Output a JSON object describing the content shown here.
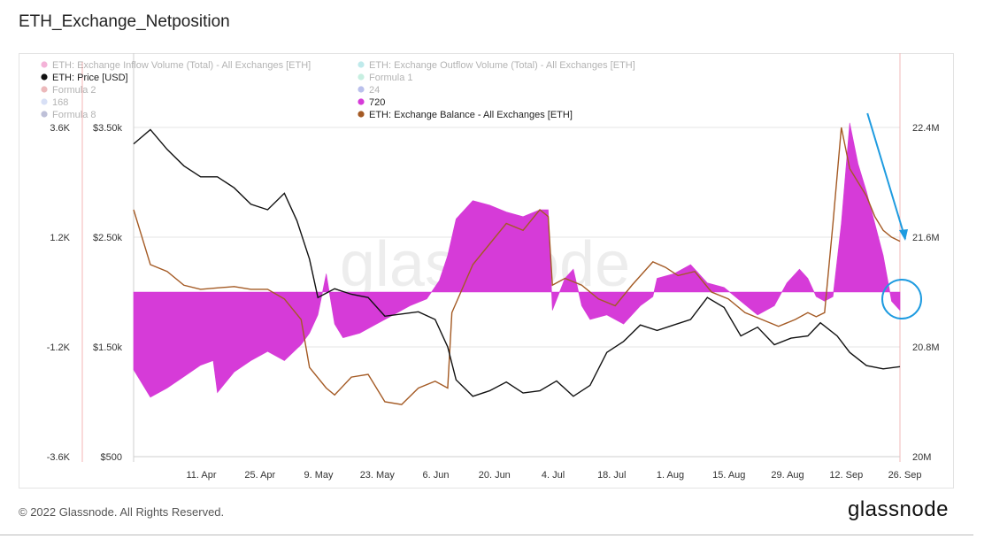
{
  "title": "ETH_Exchange_Netposition",
  "footer": {
    "copyright": "© 2022 Glassnode. All Rights Reserved.",
    "logo": "glassnode"
  },
  "watermark": "glassnode",
  "colors": {
    "netposition": "#d63bd8",
    "price": "#111111",
    "balance": "#a45a24",
    "annotation": "#1e9be0",
    "grid": "#e6e6e6"
  },
  "chart_data": {
    "type": "area",
    "title": "ETH_Exchange_Netposition",
    "legend": [
      {
        "label": "ETH: Exchange Inflow Volume (Total) - All Exchanges [ETH]",
        "color": "#e0268f",
        "faded": true
      },
      {
        "label": "ETH: Exchange Outflow Volume (Total) - All Exchanges [ETH]",
        "color": "#48c4c6",
        "faded": true
      },
      {
        "label": "ETH: Price [USD]",
        "color": "#111111",
        "faded": false
      },
      {
        "label": "Formula 1",
        "color": "#5fd0a8",
        "faded": true
      },
      {
        "label": "Formula 2",
        "color": "#c8363c",
        "faded": true
      },
      {
        "label": "24",
        "color": "#3a4ac8",
        "faded": true
      },
      {
        "label": "168",
        "color": "#8fa7e6",
        "faded": true
      },
      {
        "label": "720",
        "color": "#d63bd8",
        "faded": false
      },
      {
        "label": "Formula 8",
        "color": "#464a8e",
        "faded": true
      },
      {
        "label": "ETH: Exchange Balance - All Exchanges [ETH]",
        "color": "#a45a24",
        "faded": false
      }
    ],
    "x_ticks": [
      "11. Apr",
      "25. Apr",
      "9. May",
      "23. May",
      "6. Jun",
      "20. Jun",
      "4. Jul",
      "18. Jul",
      "1. Aug",
      "15. Aug",
      "29. Aug",
      "12. Sep",
      "26. Sep"
    ],
    "x_range": [
      "2022-03-29",
      "2022-09-28"
    ],
    "y_left_net": {
      "ticks": [
        "3.6K",
        "1.2K",
        "-1.2K",
        "-3.6K"
      ],
      "range": [
        -3600,
        3600
      ]
    },
    "y_left_price": {
      "ticks": [
        "$3.50k",
        "$2.50k",
        "$1.50k",
        "$500"
      ],
      "range": [
        500,
        3500
      ]
    },
    "y_right_balance": {
      "ticks": [
        "22.4M",
        "21.6M",
        "20.8M",
        "20M"
      ],
      "range": [
        20000000,
        22400000
      ]
    },
    "series": [
      {
        "name": "720",
        "type": "area",
        "axis": "net",
        "dates": [
          "2022-03-29",
          "2022-04-02",
          "2022-04-06",
          "2022-04-10",
          "2022-04-14",
          "2022-04-17",
          "2022-04-18",
          "2022-04-22",
          "2022-04-26",
          "2022-04-30",
          "2022-05-04",
          "2022-05-08",
          "2022-05-10",
          "2022-05-12",
          "2022-05-14",
          "2022-05-16",
          "2022-05-18",
          "2022-05-22",
          "2022-05-26",
          "2022-05-30",
          "2022-06-03",
          "2022-06-07",
          "2022-06-10",
          "2022-06-12",
          "2022-06-14",
          "2022-06-18",
          "2022-06-22",
          "2022-06-26",
          "2022-06-30",
          "2022-07-04",
          "2022-07-06",
          "2022-07-07",
          "2022-07-10",
          "2022-07-12",
          "2022-07-14",
          "2022-07-16",
          "2022-07-20",
          "2022-07-24",
          "2022-07-28",
          "2022-07-31",
          "2022-08-01",
          "2022-08-05",
          "2022-08-09",
          "2022-08-13",
          "2022-08-17",
          "2022-08-21",
          "2022-08-25",
          "2022-08-29",
          "2022-09-01",
          "2022-09-04",
          "2022-09-06",
          "2022-09-08",
          "2022-09-10",
          "2022-09-12",
          "2022-09-14",
          "2022-09-16",
          "2022-09-18",
          "2022-09-20",
          "2022-09-22",
          "2022-09-24",
          "2022-09-26",
          "2022-09-28"
        ],
        "values": [
          -1700,
          -2300,
          -2100,
          -1850,
          -1600,
          -1500,
          -2200,
          -1750,
          -1500,
          -1300,
          -1500,
          -1150,
          -900,
          -500,
          400,
          -700,
          -1000,
          -900,
          -700,
          -500,
          -300,
          -150,
          250,
          800,
          1600,
          2000,
          1900,
          1750,
          1650,
          1800,
          1800,
          -400,
          300,
          500,
          -300,
          -600,
          -500,
          -700,
          -300,
          -100,
          300,
          400,
          600,
          200,
          100,
          -200,
          -500,
          -300,
          200,
          500,
          300,
          -100,
          -200,
          -100,
          1500,
          3700,
          2800,
          2200,
          1500,
          800,
          -200,
          -400
        ]
      },
      {
        "name": "ETH: Price [USD]",
        "type": "line",
        "axis": "price",
        "dates": [
          "2022-03-29",
          "2022-04-02",
          "2022-04-06",
          "2022-04-10",
          "2022-04-14",
          "2022-04-18",
          "2022-04-22",
          "2022-04-26",
          "2022-04-30",
          "2022-05-04",
          "2022-05-07",
          "2022-05-10",
          "2022-05-12",
          "2022-05-16",
          "2022-05-20",
          "2022-05-24",
          "2022-05-28",
          "2022-06-01",
          "2022-06-05",
          "2022-06-09",
          "2022-06-12",
          "2022-06-14",
          "2022-06-18",
          "2022-06-22",
          "2022-06-26",
          "2022-06-30",
          "2022-07-04",
          "2022-07-08",
          "2022-07-12",
          "2022-07-16",
          "2022-07-20",
          "2022-07-24",
          "2022-07-28",
          "2022-08-01",
          "2022-08-05",
          "2022-08-09",
          "2022-08-13",
          "2022-08-17",
          "2022-08-21",
          "2022-08-25",
          "2022-08-29",
          "2022-09-02",
          "2022-09-06",
          "2022-09-09",
          "2022-09-13",
          "2022-09-16",
          "2022-09-20",
          "2022-09-24",
          "2022-09-28"
        ],
        "values": [
          3350,
          3480,
          3300,
          3150,
          3050,
          3050,
          2950,
          2800,
          2750,
          2900,
          2650,
          2300,
          1950,
          2030,
          1980,
          1950,
          1780,
          1800,
          1820,
          1750,
          1500,
          1200,
          1050,
          1100,
          1180,
          1080,
          1100,
          1190,
          1050,
          1150,
          1450,
          1550,
          1700,
          1650,
          1700,
          1750,
          1950,
          1860,
          1600,
          1680,
          1520,
          1580,
          1600,
          1720,
          1600,
          1450,
          1330,
          1300,
          1320
        ]
      },
      {
        "name": "ETH: Exchange Balance - All Exchanges [ETH]",
        "type": "line",
        "axis": "balance",
        "dates": [
          "2022-03-29",
          "2022-04-02",
          "2022-04-06",
          "2022-04-10",
          "2022-04-14",
          "2022-04-18",
          "2022-04-22",
          "2022-04-26",
          "2022-04-30",
          "2022-05-04",
          "2022-05-08",
          "2022-05-10",
          "2022-05-14",
          "2022-05-16",
          "2022-05-20",
          "2022-05-24",
          "2022-05-28",
          "2022-06-01",
          "2022-06-05",
          "2022-06-09",
          "2022-06-12",
          "2022-06-13",
          "2022-06-18",
          "2022-06-22",
          "2022-06-26",
          "2022-06-30",
          "2022-07-04",
          "2022-07-06",
          "2022-07-07",
          "2022-07-10",
          "2022-07-14",
          "2022-07-18",
          "2022-07-22",
          "2022-07-26",
          "2022-07-31",
          "2022-08-03",
          "2022-08-06",
          "2022-08-10",
          "2022-08-14",
          "2022-08-18",
          "2022-08-22",
          "2022-08-26",
          "2022-08-30",
          "2022-09-03",
          "2022-09-06",
          "2022-09-08",
          "2022-09-10",
          "2022-09-12",
          "2022-09-14",
          "2022-09-16",
          "2022-09-18",
          "2022-09-20",
          "2022-09-22",
          "2022-09-24",
          "2022-09-26",
          "2022-09-28"
        ],
        "values": [
          21800,
          21400,
          21350,
          21250,
          21220,
          21230,
          21240,
          21220,
          21220,
          21150,
          21000,
          20650,
          20500,
          20450,
          20580,
          20600,
          20400,
          20380,
          20500,
          20550,
          20500,
          21050,
          21400,
          21550,
          21700,
          21650,
          21800,
          21750,
          21250,
          21300,
          21250,
          21150,
          21100,
          21250,
          21420,
          21380,
          21320,
          21350,
          21200,
          21150,
          21050,
          21000,
          20950,
          21000,
          21050,
          21020,
          21050,
          21700,
          22400,
          22100,
          22000,
          21900,
          21750,
          21650,
          21600,
          21570
        ]
      }
    ],
    "annotations": [
      {
        "type": "arrow",
        "color": "#1e9be0",
        "from_date": "2022-09-16",
        "to_date": "2022-09-28"
      },
      {
        "type": "circle",
        "color": "#1e9be0",
        "at_date": "2022-09-28"
      }
    ]
  }
}
